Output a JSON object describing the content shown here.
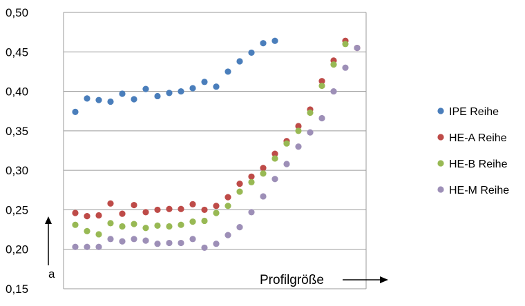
{
  "chart_data": {
    "type": "scatter",
    "title": "",
    "xlabel": "Profilgröße",
    "ylabel": "a",
    "ylim": [
      0.15,
      0.5
    ],
    "yticks": [
      "0,15",
      "0,20",
      "0,25",
      "0,30",
      "0,35",
      "0,40",
      "0,45",
      "0,50"
    ],
    "grid": true,
    "legend_position": "right",
    "series": [
      {
        "name": "IPE Reihe",
        "color": "#4a7ebb",
        "x": [
          1,
          2,
          3,
          4,
          5,
          6,
          7,
          8,
          9,
          10,
          11,
          12,
          13,
          14,
          15,
          16,
          17,
          18
        ],
        "y": [
          0.374,
          0.391,
          0.389,
          0.387,
          0.397,
          0.39,
          0.403,
          0.394,
          0.398,
          0.4,
          0.404,
          0.412,
          0.406,
          0.425,
          0.438,
          0.449,
          0.461,
          0.464
        ]
      },
      {
        "name": "HE-A Reihe",
        "color": "#be4b48",
        "x": [
          1,
          2,
          3,
          4,
          5,
          6,
          7,
          8,
          9,
          10,
          11,
          12,
          13,
          14,
          15,
          16,
          17,
          18,
          19,
          20,
          21,
          22,
          23,
          24,
          25
        ],
        "y": [
          0.246,
          0.242,
          0.243,
          0.258,
          0.245,
          0.256,
          0.247,
          0.25,
          0.251,
          0.251,
          0.257,
          0.25,
          0.255,
          0.266,
          0.283,
          0.292,
          0.303,
          0.321,
          0.337,
          0.356,
          0.377,
          0.413,
          0.439,
          0.464,
          0.455
        ]
      },
      {
        "name": "HE-B Reihe",
        "color": "#98b954",
        "x": [
          1,
          2,
          3,
          4,
          5,
          6,
          7,
          8,
          9,
          10,
          11,
          12,
          13,
          14,
          15,
          16,
          17,
          18,
          19,
          20,
          21,
          22,
          23,
          24
        ],
        "y": [
          0.231,
          0.223,
          0.219,
          0.233,
          0.229,
          0.232,
          0.227,
          0.23,
          0.229,
          0.231,
          0.235,
          0.236,
          0.246,
          0.255,
          0.273,
          0.285,
          0.296,
          0.315,
          0.334,
          0.35,
          0.373,
          0.407,
          0.434,
          0.46
        ]
      },
      {
        "name": "HE-M Reihe",
        "color": "#9d8fb7",
        "x": [
          1,
          2,
          3,
          4,
          5,
          6,
          7,
          8,
          9,
          10,
          11,
          12,
          13,
          14,
          15,
          16,
          17,
          18,
          19,
          20,
          21,
          22,
          23,
          24,
          25
        ],
        "y": [
          0.203,
          0.203,
          0.203,
          0.213,
          0.21,
          0.213,
          0.211,
          0.207,
          0.208,
          0.208,
          0.213,
          0.202,
          0.207,
          0.218,
          0.228,
          0.247,
          0.267,
          0.289,
          0.308,
          0.33,
          0.348,
          0.366,
          0.4,
          0.43,
          0.455
        ]
      }
    ]
  }
}
